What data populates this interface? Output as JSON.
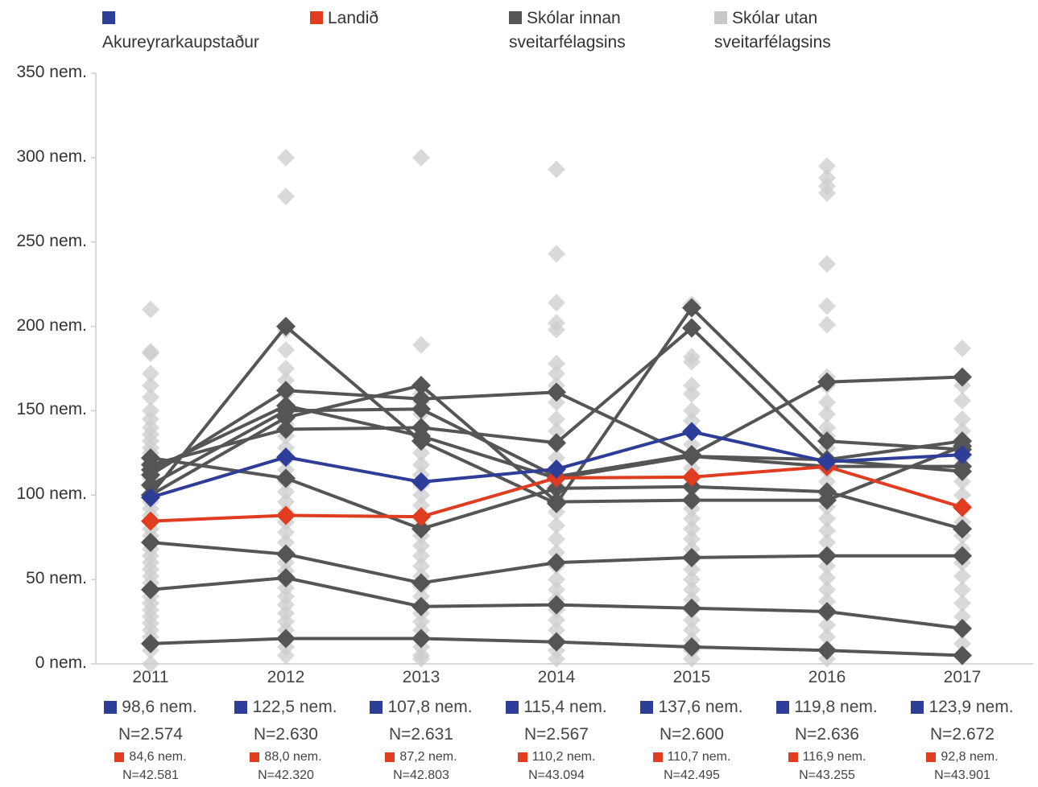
{
  "chart_data": {
    "type": "line",
    "categories": [
      "2011",
      "2012",
      "2013",
      "2014",
      "2015",
      "2016",
      "2017"
    ],
    "y_unit": "nem.",
    "ylim": [
      0,
      350
    ],
    "yticks": [
      "0 nem.",
      "50 nem.",
      "100 nem.",
      "150 nem.",
      "200 nem.",
      "250 nem.",
      "300 nem.",
      "350 nem."
    ],
    "grid": false,
    "legend_position": "top",
    "legend": [
      {
        "label": "Akureyrarkaupstaður",
        "color": "#2e3d98",
        "marker": "square"
      },
      {
        "label": "Landið",
        "color": "#e03c1f",
        "marker": "square"
      },
      {
        "label": "Skólar innan sveitarfélagsins",
        "color": "#555555",
        "marker": "square"
      },
      {
        "label": "Skólar utan sveitarfélagsins",
        "color": "#c8c8c8",
        "marker": "square"
      }
    ],
    "series": [
      {
        "name": "Akureyrarkaupstaður",
        "color": "#2e3d98",
        "values": [
          98.6,
          122.5,
          107.8,
          115.4,
          137.6,
          119.8,
          123.9
        ],
        "labels": [
          "98,6 nem.",
          "122,5 nem.",
          "107,8 nem.",
          "115,4 nem.",
          "137,6 nem.",
          "119,8 nem.",
          "123,9 nem."
        ],
        "n": [
          "N=2.574",
          "N=2.630",
          "N=2.631",
          "N=2.567",
          "N=2.600",
          "N=2.636",
          "N=2.672"
        ]
      },
      {
        "name": "Landið",
        "color": "#e03c1f",
        "values": [
          84.6,
          88.0,
          87.2,
          110.2,
          110.7,
          116.9,
          92.8
        ],
        "labels": [
          "84,6 nem.",
          "88,0 nem.",
          "87,2 nem.",
          "110,2 nem.",
          "110,7 nem.",
          "116,9 nem.",
          "92,8 nem."
        ],
        "n": [
          "N=42.581",
          "N=42.320",
          "N=42.803",
          "N=43.094",
          "N=42.495",
          "N=43.255",
          "N=43.901"
        ]
      }
    ],
    "schools_inside": {
      "name": "Skólar innan sveitarfélagsins",
      "color": "#555555",
      "series": [
        [
          122,
          110,
          80,
          104,
          105,
          102,
          80
        ],
        [
          118,
          139,
          140,
          131,
          199,
          121,
          132
        ],
        [
          112,
          162,
          157,
          161,
          123,
          121,
          114
        ],
        [
          106,
          150,
          151,
          111,
          124,
          167,
          170
        ],
        [
          100,
          146,
          165,
          96,
          97,
          97,
          129
        ],
        [
          100,
          200,
          132,
          95,
          211,
          132,
          127
        ],
        [
          72,
          65,
          48,
          60,
          63,
          64,
          64
        ],
        [
          44,
          51,
          34,
          35,
          33,
          31,
          21
        ],
        [
          12,
          15,
          15,
          13,
          10,
          8,
          5
        ],
        [
          115,
          153,
          135,
          110,
          123,
          117,
          117
        ]
      ]
    },
    "schools_outside": {
      "name": "Skólar utan sveitarfélagsins",
      "color": "#cccccc",
      "values": [
        [
          210,
          185,
          184,
          172,
          165,
          158,
          150,
          145,
          140,
          136,
          132,
          128,
          125,
          122,
          118,
          115,
          110,
          105,
          100,
          96,
          92,
          88,
          84,
          80,
          76,
          72,
          68,
          64,
          60,
          56,
          52,
          48,
          44,
          40,
          36,
          32,
          28,
          24,
          20,
          16,
          12,
          8,
          0
        ],
        [
          300,
          277,
          198,
          186,
          175,
          168,
          160,
          150,
          142,
          135,
          128,
          121,
          115,
          108,
          102,
          96,
          90,
          84,
          78,
          72,
          66,
          60,
          55,
          50,
          45,
          40,
          35,
          30,
          25,
          20,
          15,
          10,
          5
        ],
        [
          300,
          189,
          165,
          160,
          155,
          148,
          140,
          132,
          125,
          118,
          112,
          106,
          100,
          94,
          88,
          82,
          76,
          70,
          64,
          58,
          52,
          46,
          40,
          35,
          30,
          25,
          20,
          15,
          10,
          5,
          3
        ],
        [
          293,
          243,
          214,
          202,
          198,
          178,
          172,
          165,
          155,
          145,
          138,
          130,
          122,
          114,
          106,
          98,
          90,
          82,
          74,
          66,
          58,
          50,
          44,
          38,
          32,
          26,
          20,
          14,
          8,
          3
        ],
        [
          213,
          200,
          182,
          179,
          165,
          160,
          150,
          144,
          138,
          130,
          122,
          116,
          110,
          104,
          98,
          92,
          86,
          80,
          74,
          68,
          62,
          56,
          50,
          44,
          38,
          32,
          26,
          20,
          14,
          8,
          3
        ],
        [
          295,
          288,
          283,
          279,
          237,
          212,
          201,
          170,
          165,
          155,
          148,
          140,
          135,
          128,
          122,
          115,
          108,
          100,
          93,
          86,
          79,
          72,
          65,
          58,
          51,
          44,
          37,
          30,
          23,
          16,
          9,
          3
        ],
        [
          187,
          165,
          156,
          145,
          138,
          130,
          122,
          115,
          108,
          100,
          92,
          84,
          76,
          68,
          60,
          52,
          44,
          36,
          28,
          20,
          12,
          5
        ]
      ]
    }
  }
}
